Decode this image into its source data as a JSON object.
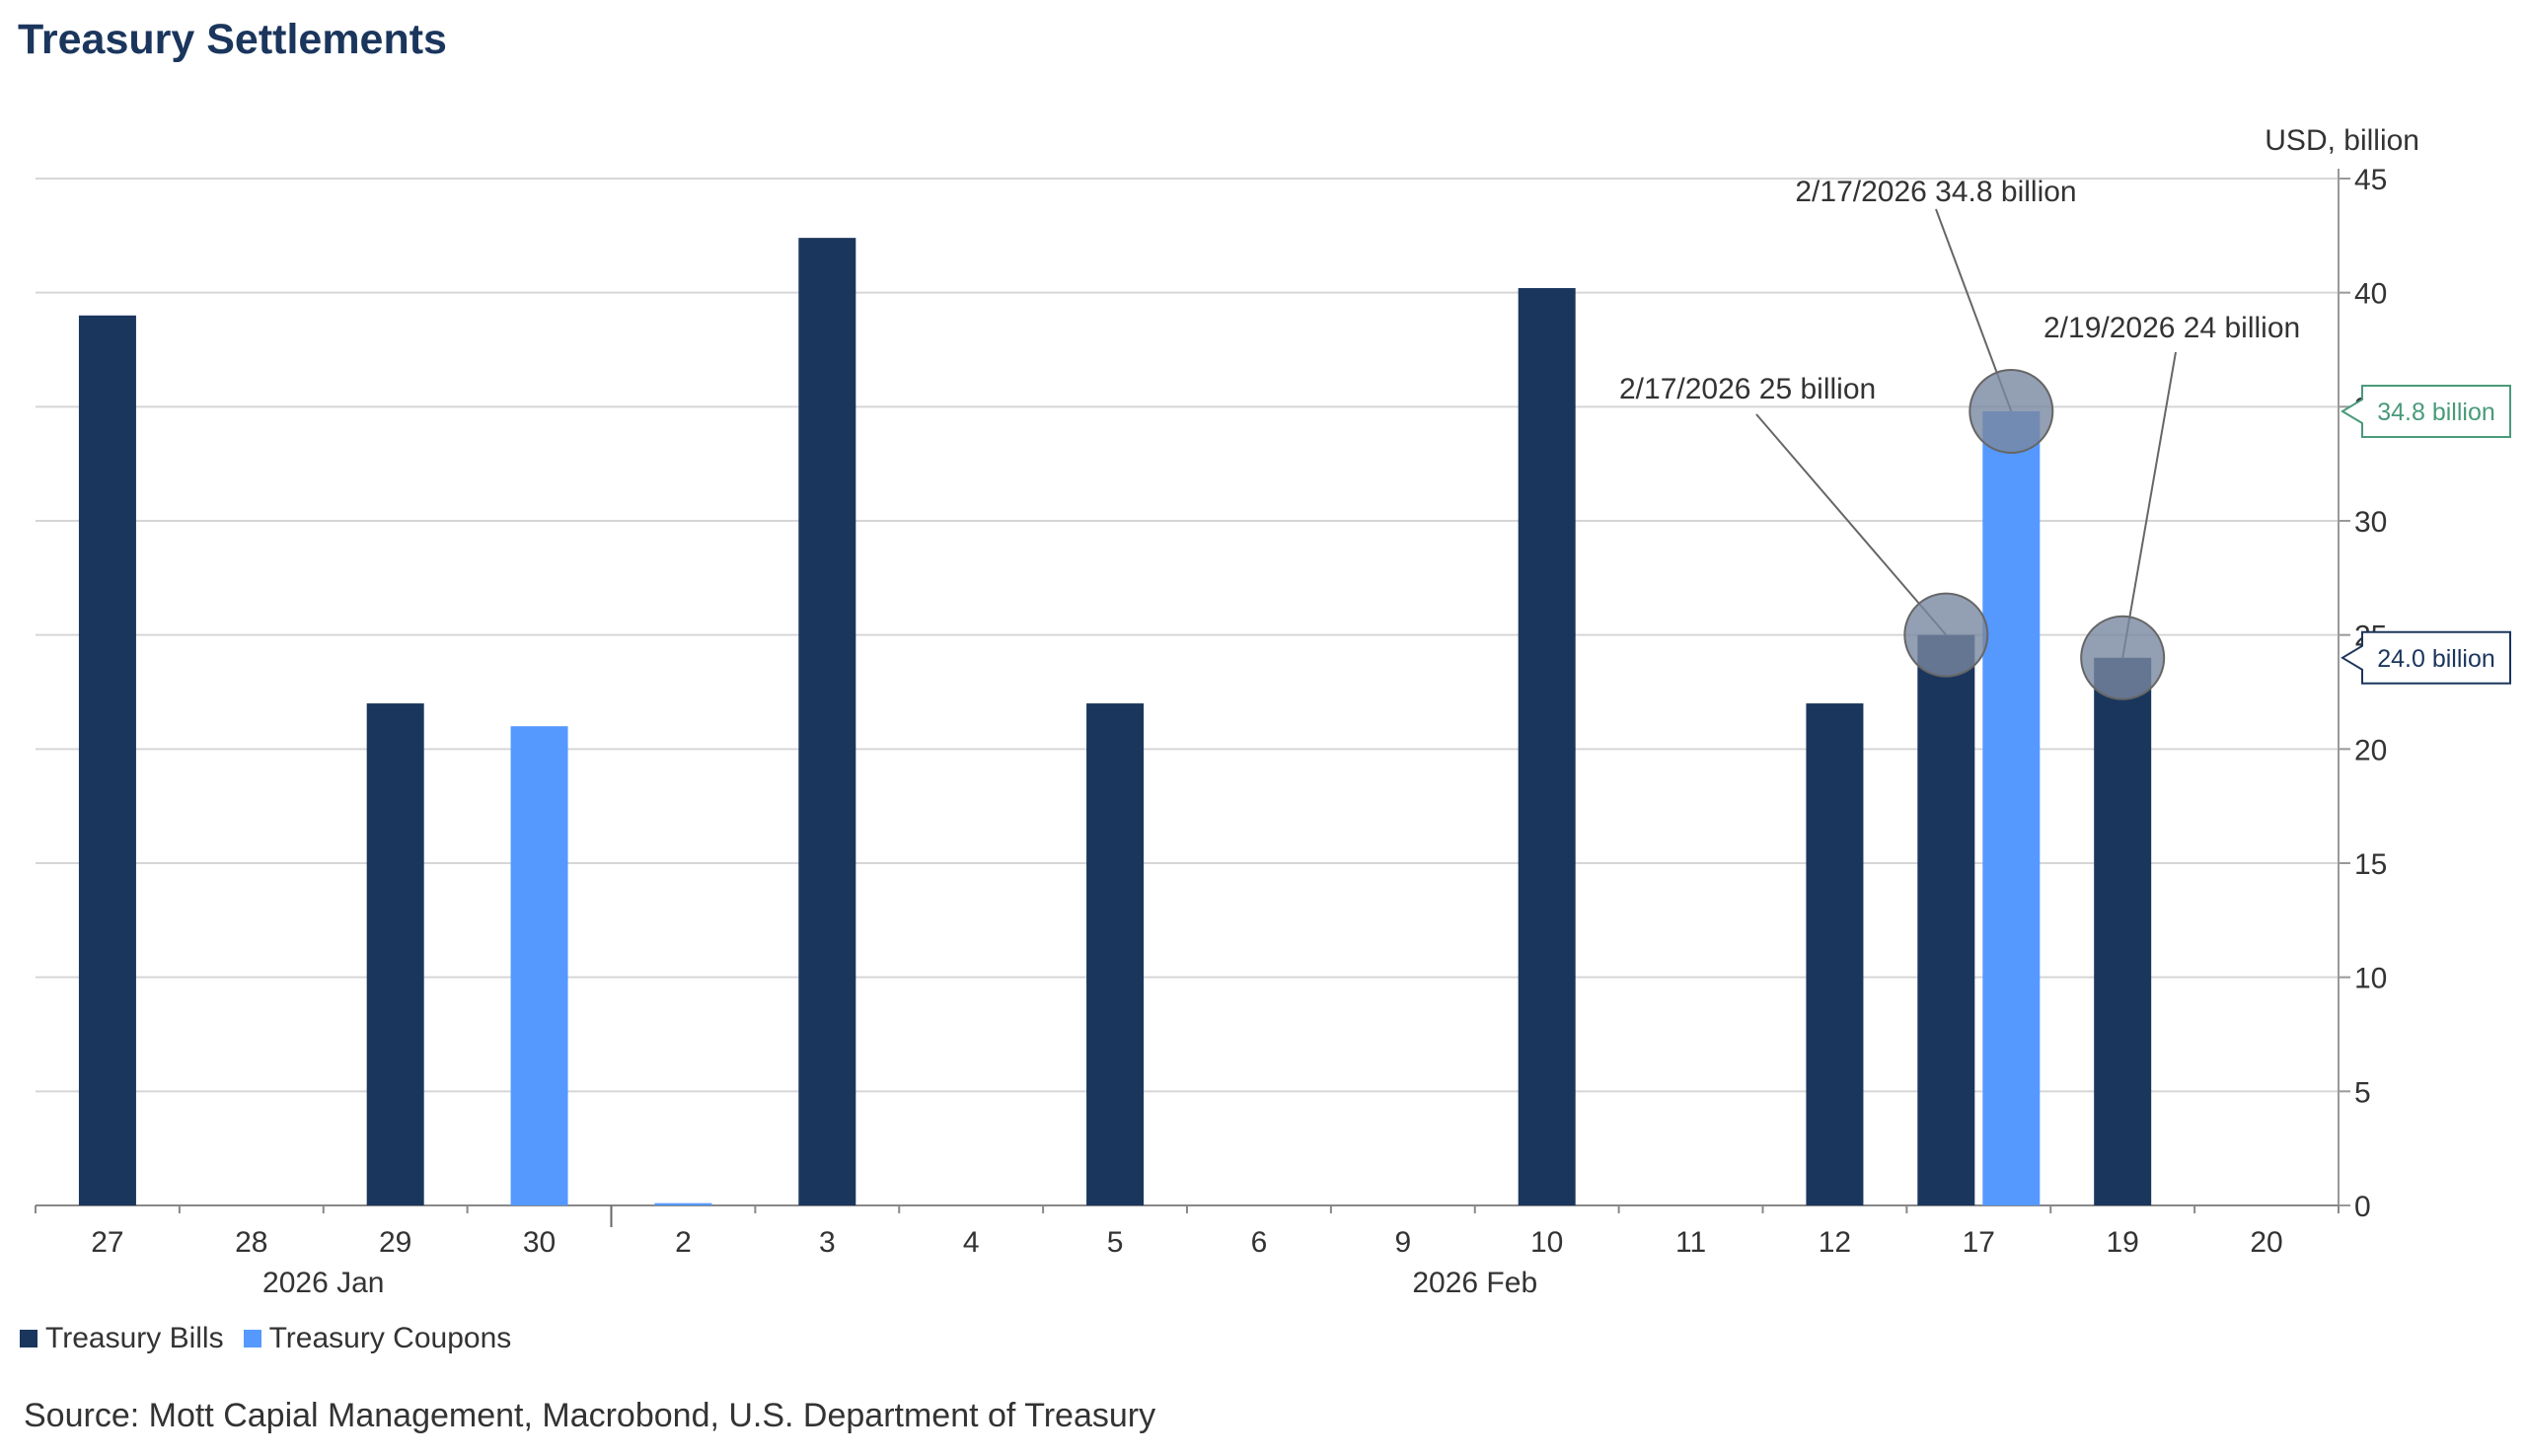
{
  "chart_data": {
    "type": "bar",
    "title": "Treasury Settlements",
    "ylabel": "USD, billion",
    "ylim": [
      0,
      45
    ],
    "yticks": [
      0,
      5,
      10,
      15,
      20,
      25,
      30,
      35,
      40,
      45
    ],
    "grid": true,
    "y_axis_side": "right",
    "categories": [
      "27",
      "28",
      "29",
      "30",
      "2",
      "3",
      "4",
      "5",
      "6",
      "9",
      "10",
      "11",
      "12",
      "17",
      "19",
      "20"
    ],
    "month_groups": [
      {
        "label": "2026 Jan",
        "start": 0,
        "end": 3
      },
      {
        "label": "2026 Feb",
        "start": 4,
        "end": 15
      }
    ],
    "series": [
      {
        "name": "Treasury Bills",
        "color": "#1b365d",
        "values": [
          39,
          0,
          22,
          0,
          0,
          42.4,
          0,
          22,
          0,
          0,
          40.2,
          0,
          22,
          25,
          24,
          0
        ]
      },
      {
        "name": "Treasury Coupons",
        "color": "#5599ff",
        "values": [
          0,
          0,
          0,
          21,
          0.1,
          0,
          0,
          0,
          0,
          0,
          0,
          0,
          0,
          34.8,
          0,
          0
        ]
      }
    ],
    "annotations": [
      {
        "text": "2/17/2026 34.8 billion",
        "category": "17",
        "series": "Treasury Coupons",
        "value": 34.8
      },
      {
        "text": "2/17/2026 25 billion",
        "category": "17",
        "series": "Treasury Bills",
        "value": 25
      },
      {
        "text": "2/19/2026 24 billion",
        "category": "19",
        "series": "Treasury Bills",
        "value": 24
      }
    ],
    "last_value_labels": [
      {
        "text": "34.8 billion",
        "value": 34.8,
        "color": "#4a9a7a"
      },
      {
        "text": "24.0 billion",
        "value": 24.0,
        "color": "#1b365d"
      }
    ],
    "legend": "bottom-left",
    "source": "Source: Mott Capial Management, Macrobond, U.S. Department of Treasury"
  }
}
